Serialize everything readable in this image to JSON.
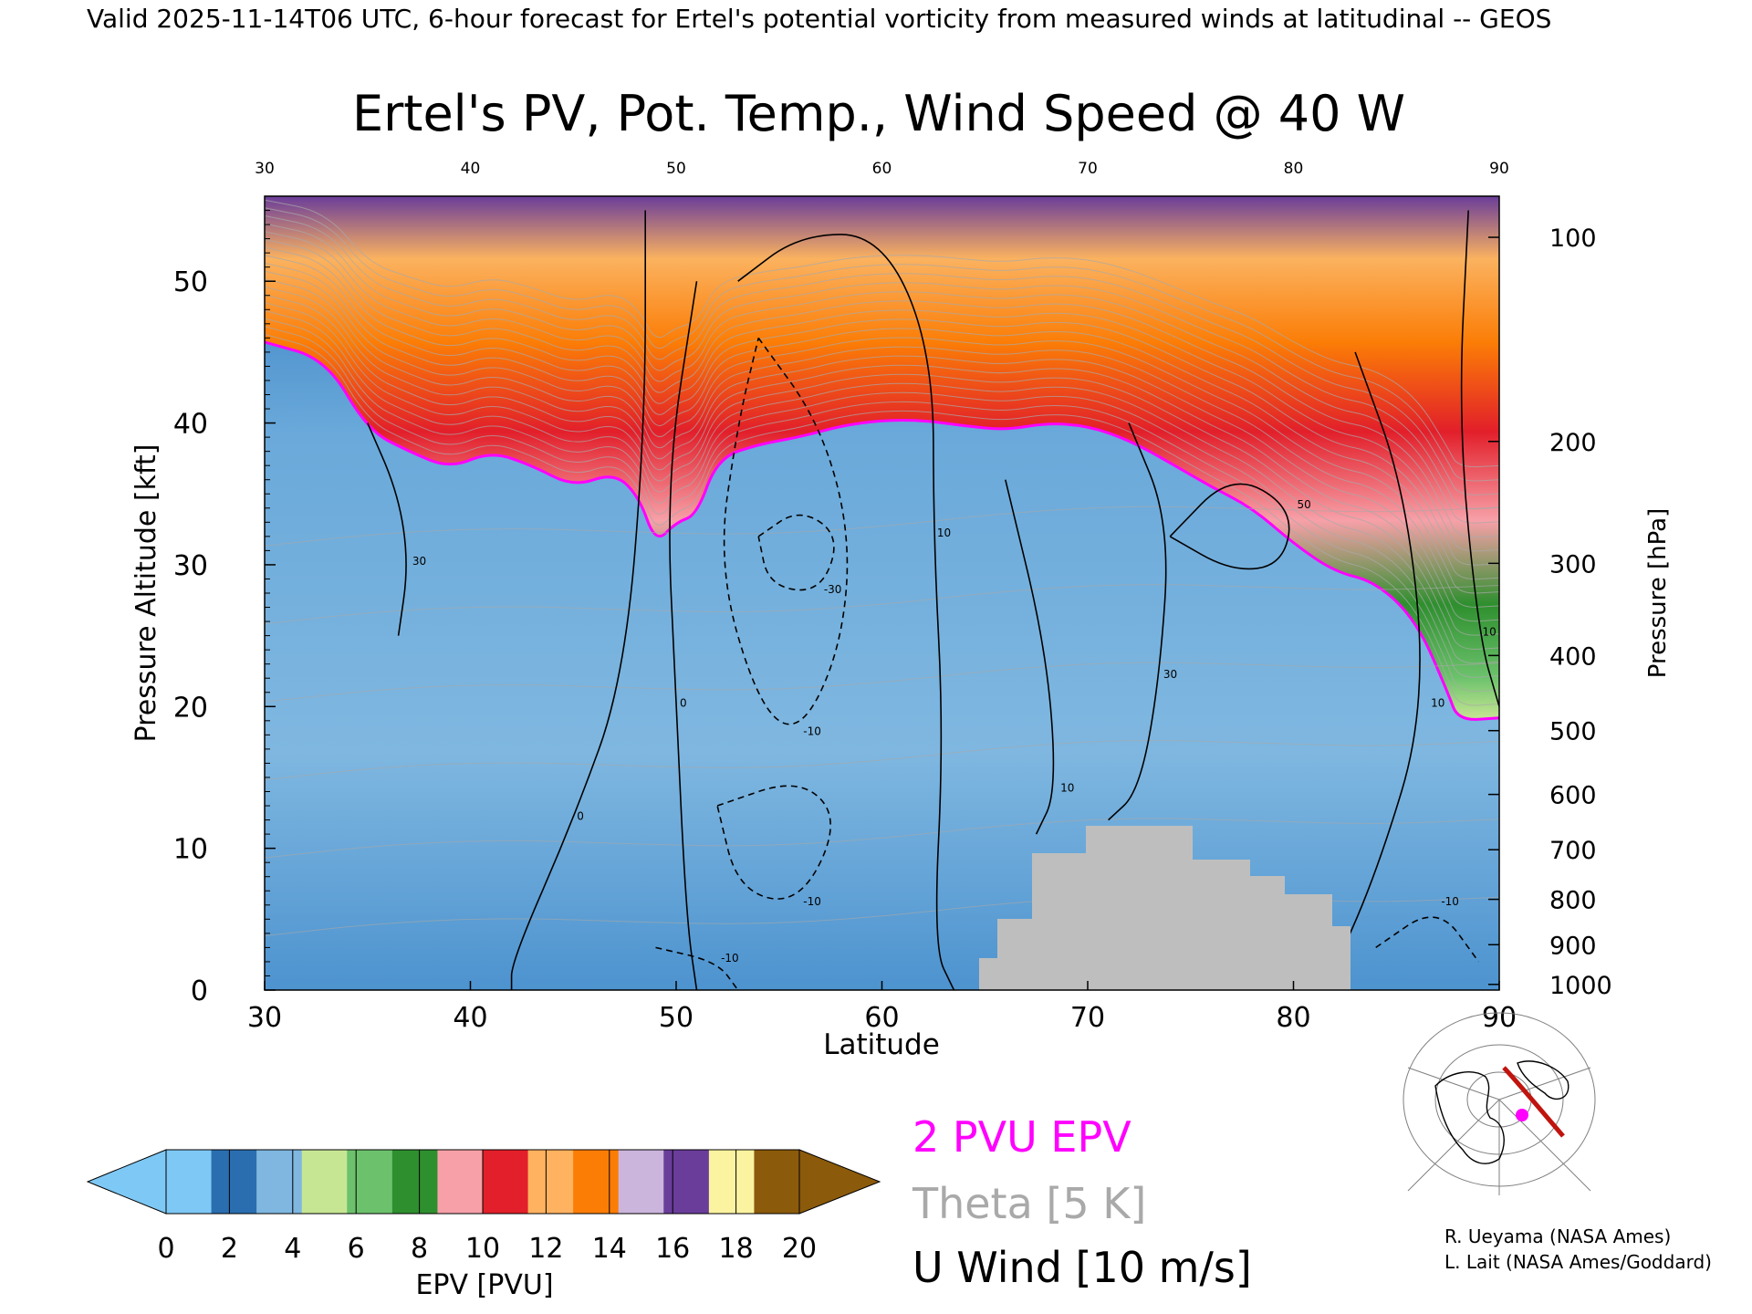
{
  "header": "Valid 2025-11-14T06 UTC, 6-hour forecast for Ertel's potential vorticity from measured winds at latitudinal -- GEOS",
  "chart_data": {
    "type": "heatmap",
    "title": "Ertel's PV, Pot. Temp., Wind Speed @ 40 W",
    "xlabel": "Latitude",
    "ylabel_left": "Pressure Altitude [kft]",
    "ylabel_right": "Pressure [hPa]",
    "xlim": [
      30,
      90
    ],
    "ylim": [
      0,
      56
    ],
    "x_ticks": [
      30,
      40,
      50,
      60,
      70,
      80,
      90
    ],
    "top_ticks": [
      30,
      40,
      50,
      60,
      70,
      80,
      90
    ],
    "y_ticks": [
      0,
      10,
      20,
      30,
      40,
      50
    ],
    "pressure_ticks": [
      {
        "hpa": 100,
        "kft": 53.1
      },
      {
        "hpa": 200,
        "kft": 38.7
      },
      {
        "hpa": 300,
        "kft": 30.1
      },
      {
        "hpa": 400,
        "kft": 23.6
      },
      {
        "hpa": 500,
        "kft": 18.3
      },
      {
        "hpa": 600,
        "kft": 13.8
      },
      {
        "hpa": 700,
        "kft": 9.9
      },
      {
        "hpa": 800,
        "kft": 6.4
      },
      {
        "hpa": 900,
        "kft": 3.2
      },
      {
        "hpa": 1000,
        "kft": 0.4
      }
    ],
    "tropopause_2pvu_kft": [
      [
        30,
        45.7
      ],
      [
        33,
        44.5
      ],
      [
        35,
        39.5
      ],
      [
        37,
        38.0
      ],
      [
        39,
        36.8
      ],
      [
        41,
        38.0
      ],
      [
        43,
        37.0
      ],
      [
        45,
        35.5
      ],
      [
        47,
        36.5
      ],
      [
        48.2,
        34.8
      ],
      [
        49,
        31.5
      ],
      [
        50,
        33.0
      ],
      [
        51,
        33.5
      ],
      [
        52,
        37.5
      ],
      [
        54,
        38.5
      ],
      [
        56,
        39.0
      ],
      [
        58,
        39.8
      ],
      [
        60,
        40.2
      ],
      [
        62,
        40.2
      ],
      [
        64,
        39.8
      ],
      [
        66,
        39.5
      ],
      [
        68,
        40.0
      ],
      [
        70,
        39.8
      ],
      [
        72,
        38.8
      ],
      [
        74,
        37.2
      ],
      [
        76,
        35.5
      ],
      [
        78,
        34.0
      ],
      [
        80,
        31.5
      ],
      [
        82,
        29.5
      ],
      [
        84,
        28.8
      ],
      [
        86,
        26.0
      ],
      [
        87.5,
        21.0
      ],
      [
        88,
        19.0
      ],
      [
        90,
        19.2
      ]
    ],
    "wind_contours": [
      {
        "label": "30",
        "dashed": false,
        "kft": [
          [
            35,
            40
          ],
          [
            36.5,
            35
          ],
          [
            37,
            30
          ],
          [
            36.5,
            25
          ]
        ]
      },
      {
        "label": "50",
        "dashed": false,
        "kft": [
          [
            74,
            32
          ],
          [
            77,
            29.5
          ],
          [
            79.5,
            30
          ],
          [
            80,
            34
          ],
          [
            77,
            36.5
          ],
          [
            74,
            32
          ]
        ]
      },
      {
        "label": "0",
        "dashed": false,
        "kft": [
          [
            48.5,
            55
          ],
          [
            48.5,
            40
          ],
          [
            47.5,
            22
          ],
          [
            45,
            12
          ],
          [
            42,
            2
          ],
          [
            42,
            0
          ]
        ]
      },
      {
        "label": "10",
        "dashed": false,
        "kft": [
          [
            53,
            50
          ],
          [
            56,
            53.3
          ],
          [
            60,
            53.3
          ],
          [
            62.5,
            45
          ],
          [
            62.5,
            32
          ],
          [
            63,
            18
          ],
          [
            62.5,
            3
          ],
          [
            63.5,
            0
          ]
        ]
      },
      {
        "label": "0",
        "dashed": false,
        "kft": [
          [
            51,
            50
          ],
          [
            49.5,
            36
          ],
          [
            50,
            20
          ],
          [
            50.5,
            5
          ],
          [
            51,
            0
          ]
        ]
      },
      {
        "label": "10",
        "dashed": false,
        "kft": [
          [
            83,
            45
          ],
          [
            85.5,
            35
          ],
          [
            86.5,
            20
          ],
          [
            84,
            8
          ],
          [
            81.5,
            0
          ]
        ]
      },
      {
        "label": "10",
        "dashed": false,
        "kft": [
          [
            88.5,
            55
          ],
          [
            88,
            40
          ],
          [
            89,
            25
          ],
          [
            90,
            20
          ]
        ]
      },
      {
        "label": "30",
        "dashed": false,
        "kft": [
          [
            72,
            40
          ],
          [
            74,
            33
          ],
          [
            73.5,
            22
          ],
          [
            72.5,
            14
          ],
          [
            71,
            12
          ]
        ]
      },
      {
        "label": "10",
        "dashed": false,
        "kft": [
          [
            66,
            36
          ],
          [
            68,
            24
          ],
          [
            68.5,
            14
          ],
          [
            67.5,
            11
          ]
        ]
      },
      {
        "label": "-30",
        "dashed": true,
        "kft": [
          [
            54,
            32
          ],
          [
            56,
            34
          ],
          [
            58,
            32
          ],
          [
            57,
            28
          ],
          [
            54.5,
            28.5
          ],
          [
            54,
            32
          ]
        ]
      },
      {
        "label": "-10",
        "dashed": true,
        "kft": [
          [
            54,
            46
          ],
          [
            57,
            40
          ],
          [
            58.5,
            32
          ],
          [
            58,
            24
          ],
          [
            56,
            18
          ],
          [
            54,
            20
          ],
          [
            52,
            30
          ],
          [
            53,
            40
          ],
          [
            54,
            46
          ]
        ]
      },
      {
        "label": "-10",
        "dashed": true,
        "kft": [
          [
            52,
            13
          ],
          [
            56,
            15
          ],
          [
            58,
            12
          ],
          [
            56,
            6
          ],
          [
            53,
            7
          ],
          [
            52,
            13
          ]
        ]
      },
      {
        "label": "-10",
        "dashed": true,
        "kft": [
          [
            49,
            3
          ],
          [
            52,
            2
          ],
          [
            53,
            0
          ]
        ]
      },
      {
        "label": "-10",
        "dashed": true,
        "kft": [
          [
            84,
            3
          ],
          [
            87,
            6
          ],
          [
            89,
            2
          ]
        ]
      }
    ],
    "surface_mask": "grey",
    "colorbar": {
      "label": "EPV [PVU]",
      "ticks": [
        "0",
        "2",
        "4",
        "6",
        "8",
        "10",
        "12",
        "14",
        "16",
        "18",
        "20"
      ],
      "colors": [
        "#7ec8f5",
        "#2a6eb0",
        "#7fb7e0",
        "#c7e694",
        "#6cc26c",
        "#2e8f2e",
        "#f7a0a8",
        "#e21f2a",
        "#ffb25f",
        "#fb7d06",
        "#cbb5dc",
        "#6a3d9a",
        "#fbf3a0",
        "#8b5a0b"
      ]
    }
  },
  "legend": {
    "pv": "2 PVU EPV",
    "theta": "Theta [5 K]",
    "wind": "U Wind [10 m/s]"
  },
  "credits": [
    "R. Ueyama (NASA Ames)",
    "L. Lait (NASA Ames/Goddard)"
  ]
}
